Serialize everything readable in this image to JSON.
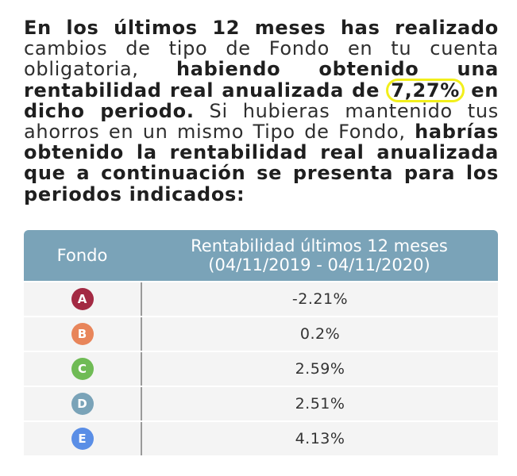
{
  "paragraph": {
    "part1_bold": "En los últimos 12 meses has realizado",
    "part2": " cambios de tipo de Fondo en tu cuenta obligatoria, ",
    "part3_bold": "habiendo obtenido una rentabilidad real anualizada de ",
    "highlight_value": "7,27%",
    "part4_bold": " en dicho periodo.",
    "part5": " Si hubieras mantenido tus ahorros en un mismo Tipo de Fondo, ",
    "part6_bold": "habrías obtenido la rentabilidad real anualizada que a continuación se presenta para los periodos indicados:"
  },
  "table": {
    "header": {
      "fondo": "Fondo",
      "rent_line1": "Rentabilidad últimos 12 meses",
      "rent_line2": "(04/11/2019 - 04/11/2020)"
    },
    "rows": [
      {
        "fondo": "A",
        "color": "#a32a43",
        "value": "-2.21%"
      },
      {
        "fondo": "B",
        "color": "#e8855a",
        "value": "0.2%"
      },
      {
        "fondo": "C",
        "color": "#6fbb55",
        "value": "2.59%"
      },
      {
        "fondo": "D",
        "color": "#7aa3b8",
        "value": "2.51%"
      },
      {
        "fondo": "E",
        "color": "#5a8ee6",
        "value": "4.13%"
      }
    ]
  },
  "colors": {
    "header_bg": "#7aa3b8",
    "row_bg": "#f4f4f4",
    "highlight_circle": "#f2ef1c"
  }
}
